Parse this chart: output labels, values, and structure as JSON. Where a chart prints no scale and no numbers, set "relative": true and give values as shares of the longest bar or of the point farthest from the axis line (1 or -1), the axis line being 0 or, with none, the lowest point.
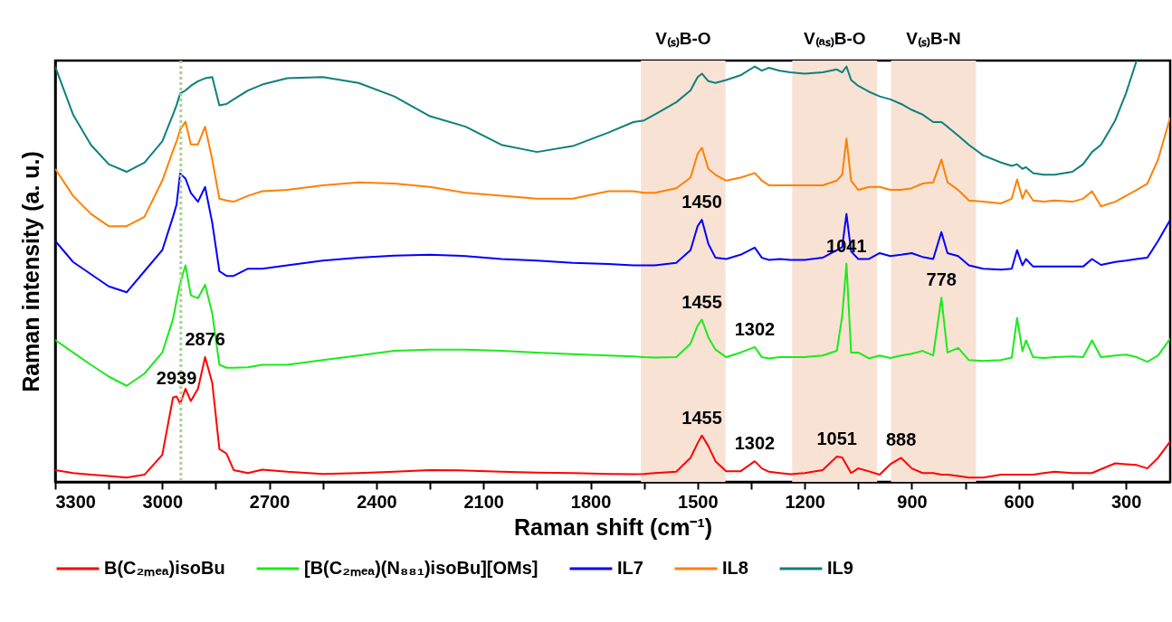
{
  "chart_data": {
    "type": "line",
    "relative": true,
    "xlabel": "Raman shift (cm⁻¹)",
    "ylabel": "Raman intensity (a. u.)",
    "legend": "bottom",
    "xlim": [
      3300,
      176
    ],
    "xticks": [
      3300,
      {
        "value": 3150,
        "label": null
      },
      3000,
      {
        "value": 2850,
        "label": null
      },
      2700,
      {
        "value": 2550,
        "label": null
      },
      2400,
      {
        "value": 2250,
        "label": null
      },
      2100,
      {
        "value": 1950,
        "label": null
      },
      1800,
      {
        "value": 1650,
        "label": null
      },
      1500,
      {
        "value": 1350,
        "label": null
      },
      1200,
      {
        "value": 1050,
        "label": null
      },
      900,
      {
        "value": 750,
        "label": null
      },
      600,
      {
        "value": 450,
        "label": null
      },
      300
    ],
    "x": [
      3300,
      3250,
      3200,
      3150,
      3100,
      3050,
      3000,
      2970,
      2960,
      2950,
      2935,
      2920,
      2900,
      2880,
      2860,
      2840,
      2820,
      2800,
      2760,
      2720,
      2650,
      2550,
      2450,
      2350,
      2250,
      2150,
      2050,
      1950,
      1850,
      1750,
      1680,
      1650,
      1620,
      1560,
      1520,
      1500,
      1488,
      1470,
      1450,
      1420,
      1380,
      1340,
      1320,
      1300,
      1270,
      1240,
      1200,
      1150,
      1110,
      1095,
      1083,
      1070,
      1050,
      1020,
      990,
      960,
      930,
      900,
      870,
      840,
      817,
      800,
      770,
      740,
      700,
      650,
      620,
      605,
      590,
      580,
      560,
      530,
      500,
      450,
      420,
      395,
      370,
      330,
      300,
      270,
      240,
      210,
      176
    ],
    "series": [
      {
        "name": "B(C₂ₘₑₐ)isoBu",
        "color": "#ff0000",
        "values": [
          0.028,
          0.021,
          0.017,
          0.014,
          0.01,
          0.017,
          0.064,
          0.2,
          0.203,
          0.185,
          0.221,
          0.192,
          0.221,
          0.296,
          0.235,
          0.078,
          0.067,
          0.028,
          0.021,
          0.029,
          0.024,
          0.019,
          0.021,
          0.024,
          0.028,
          0.027,
          0.024,
          0.022,
          0.021,
          0.019,
          0.018,
          0.019,
          0.021,
          0.024,
          0.057,
          0.092,
          0.11,
          0.085,
          0.049,
          0.025,
          0.025,
          0.049,
          0.032,
          0.024,
          0.021,
          0.018,
          0.021,
          0.028,
          0.06,
          0.058,
          0.04,
          0.021,
          0.032,
          0.025,
          0.017,
          0.042,
          0.057,
          0.032,
          0.021,
          0.021,
          0.017,
          0.017,
          0.014,
          0.01,
          0.01,
          0.017,
          0.017,
          0.017,
          0.017,
          0.017,
          0.017,
          0.021,
          0.024,
          0.021,
          0.021,
          0.021,
          0.03,
          0.044,
          0.042,
          0.04,
          0.032,
          0.057,
          0.096
        ]
      },
      {
        "name": "[B(C₂ₘₑₐ)(N₈₈₁)isoBu][OMs]",
        "color": "#1aeb1a",
        "values": [
          0.337,
          0.307,
          0.278,
          0.25,
          0.228,
          0.257,
          0.307,
          0.386,
          0.43,
          0.471,
          0.514,
          0.443,
          0.436,
          0.468,
          0.4,
          0.278,
          0.271,
          0.271,
          0.272,
          0.278,
          0.278,
          0.289,
          0.3,
          0.311,
          0.314,
          0.314,
          0.311,
          0.307,
          0.303,
          0.3,
          0.298,
          0.296,
          0.295,
          0.296,
          0.328,
          0.371,
          0.385,
          0.343,
          0.314,
          0.296,
          0.307,
          0.32,
          0.296,
          0.293,
          0.296,
          0.296,
          0.296,
          0.3,
          0.311,
          0.393,
          0.518,
          0.307,
          0.307,
          0.293,
          0.3,
          0.294,
          0.3,
          0.304,
          0.311,
          0.3,
          0.437,
          0.307,
          0.318,
          0.289,
          0.287,
          0.289,
          0.295,
          0.389,
          0.31,
          0.336,
          0.296,
          0.294,
          0.296,
          0.298,
          0.296,
          0.336,
          0.296,
          0.3,
          0.302,
          0.296,
          0.285,
          0.3,
          0.34
        ]
      },
      {
        "name": "IL7",
        "color": "#0000ff",
        "values": [
          0.572,
          0.522,
          0.493,
          0.464,
          0.45,
          0.5,
          0.55,
          0.629,
          0.658,
          0.732,
          0.72,
          0.686,
          0.665,
          0.7,
          0.615,
          0.5,
          0.489,
          0.489,
          0.506,
          0.506,
          0.514,
          0.525,
          0.532,
          0.537,
          0.539,
          0.536,
          0.529,
          0.525,
          0.52,
          0.517,
          0.514,
          0.514,
          0.514,
          0.52,
          0.55,
          0.607,
          0.622,
          0.565,
          0.532,
          0.529,
          0.539,
          0.556,
          0.532,
          0.527,
          0.529,
          0.527,
          0.527,
          0.532,
          0.55,
          0.557,
          0.636,
          0.547,
          0.529,
          0.529,
          0.543,
          0.536,
          0.539,
          0.543,
          0.534,
          0.529,
          0.593,
          0.543,
          0.536,
          0.514,
          0.506,
          0.504,
          0.506,
          0.55,
          0.514,
          0.529,
          0.511,
          0.511,
          0.511,
          0.511,
          0.511,
          0.529,
          0.515,
          0.522,
          0.525,
          0.529,
          0.532,
          0.572,
          0.622
        ]
      },
      {
        "name": "IL8",
        "color": "#ff8000",
        "values": [
          0.743,
          0.679,
          0.636,
          0.607,
          0.607,
          0.629,
          0.715,
          0.786,
          0.808,
          0.836,
          0.855,
          0.801,
          0.801,
          0.843,
          0.765,
          0.672,
          0.668,
          0.665,
          0.679,
          0.69,
          0.693,
          0.704,
          0.711,
          0.708,
          0.7,
          0.686,
          0.679,
          0.672,
          0.672,
          0.69,
          0.69,
          0.686,
          0.686,
          0.697,
          0.722,
          0.779,
          0.793,
          0.743,
          0.729,
          0.715,
          0.722,
          0.733,
          0.715,
          0.704,
          0.704,
          0.704,
          0.704,
          0.704,
          0.715,
          0.729,
          0.815,
          0.715,
          0.693,
          0.7,
          0.7,
          0.693,
          0.693,
          0.697,
          0.708,
          0.711,
          0.765,
          0.711,
          0.693,
          0.668,
          0.665,
          0.661,
          0.672,
          0.718,
          0.672,
          0.693,
          0.668,
          0.665,
          0.668,
          0.665,
          0.672,
          0.69,
          0.654,
          0.665,
          0.679,
          0.693,
          0.708,
          0.765,
          0.865
        ]
      },
      {
        "name": "IL9",
        "color": "#0e7f7f",
        "values": [
          0.986,
          0.872,
          0.8,
          0.754,
          0.736,
          0.758,
          0.808,
          0.872,
          0.894,
          0.922,
          0.929,
          0.94,
          0.951,
          0.958,
          0.961,
          0.894,
          0.897,
          0.908,
          0.929,
          0.943,
          0.958,
          0.961,
          0.947,
          0.915,
          0.868,
          0.843,
          0.8,
          0.783,
          0.797,
          0.829,
          0.854,
          0.858,
          0.872,
          0.901,
          0.929,
          0.961,
          0.969,
          0.951,
          0.947,
          0.954,
          0.965,
          0.986,
          0.976,
          0.983,
          0.976,
          0.972,
          0.969,
          0.972,
          0.979,
          0.972,
          0.986,
          0.954,
          0.94,
          0.926,
          0.915,
          0.908,
          0.897,
          0.883,
          0.872,
          0.854,
          0.854,
          0.843,
          0.822,
          0.8,
          0.775,
          0.758,
          0.75,
          0.754,
          0.743,
          0.747,
          0.733,
          0.729,
          0.729,
          0.736,
          0.754,
          0.783,
          0.8,
          0.858,
          0.922,
          1.0,
          null,
          null,
          null
        ]
      }
    ],
    "bands": [
      {
        "axis": "x",
        "from": 1659,
        "to": 1422,
        "label": "V₍ₛ₎B-O",
        "color": "#f8e2d4"
      },
      {
        "axis": "x",
        "from": 1235,
        "to": 997,
        "label": "V₍ₐₛ₎B-O",
        "color": "#f8e2d4"
      },
      {
        "axis": "x",
        "from": 958,
        "to": 720,
        "label": "V₍ₛ₎B-N",
        "color": "#f8e2d4"
      }
    ],
    "ref_lines": [
      {
        "axis": "x",
        "value": 2948,
        "color": "#a9d18e",
        "line_style": "dotted"
      }
    ],
    "annotations": [
      {
        "text": "2939",
        "x": 2960,
        "y": 0.203
      },
      {
        "text": "2876",
        "x": 2880,
        "y": 0.296
      },
      {
        "text": "1455",
        "x": 1488,
        "y": 0.11
      },
      {
        "text": "1302",
        "x": 1340,
        "y": 0.049
      },
      {
        "text": "1051",
        "x": 1110,
        "y": 0.06
      },
      {
        "text": "888",
        "x": 930,
        "y": 0.057
      },
      {
        "text": "1455",
        "x": 1488,
        "y": 0.385
      },
      {
        "text": "1302",
        "x": 1340,
        "y": 0.32
      },
      {
        "text": "1041",
        "x": 1083,
        "y": 0.518
      },
      {
        "text": "778",
        "x": 817,
        "y": 0.437
      },
      {
        "text": "1450",
        "x": 1488,
        "y": 0.622
      }
    ]
  }
}
